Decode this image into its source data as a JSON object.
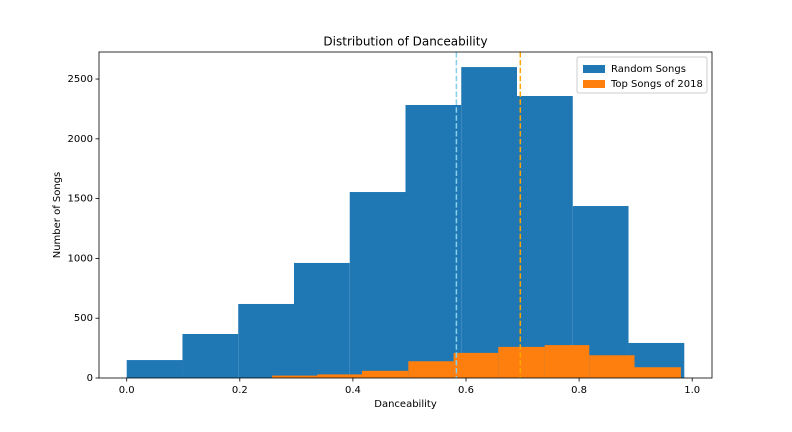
{
  "chart_data": {
    "type": "histogram",
    "title": "Distribution of Danceability",
    "x_label": "Danceability",
    "y_label": "Number of Songs",
    "series": [
      {
        "name": "Random Songs",
        "color": "#1f77b4",
        "bins": [
          0,
          0.0986,
          0.1972,
          0.2958,
          0.3944,
          0.493,
          0.5916,
          0.6902,
          0.7888,
          0.8874,
          0.986
        ],
        "values": [
          150,
          368,
          619,
          962,
          1555,
          2283,
          2600,
          2358,
          1438,
          293
        ]
      },
      {
        "name": "Top Songs of 2018",
        "color": "#ff7f0e",
        "bins": [
          0.257,
          0.337,
          0.416,
          0.498,
          0.578,
          0.657,
          0.739,
          0.818,
          0.898,
          0.98
        ],
        "values": [
          20,
          30,
          60,
          140,
          210,
          260,
          275,
          190,
          90
        ]
      }
    ],
    "vlines": [
      {
        "value": 0.583,
        "color": "#87ceeb"
      },
      {
        "value": 0.696,
        "color": "orange"
      }
    ],
    "xlim": [
      -0.049,
      1.035
    ],
    "xticks": [
      {
        "value": 0,
        "label": "0.0"
      },
      0.2,
      0.4,
      0.6,
      0.8,
      {
        "value": 1,
        "label": "1.0"
      }
    ],
    "ylim": [
      0,
      2726
    ],
    "yticks": [
      0,
      500,
      1000,
      1500,
      2000,
      2500
    ],
    "legend": "upper right"
  }
}
